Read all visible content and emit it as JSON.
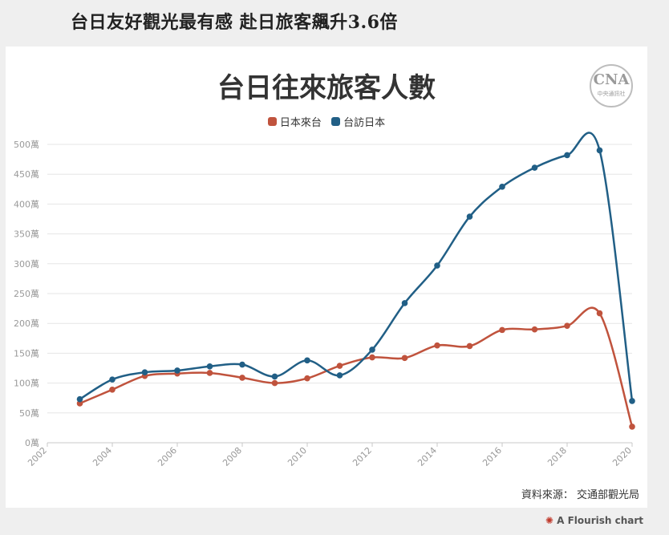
{
  "headline": "台日友好觀光最有感 赴日旅客飆升3.6倍",
  "logo": {
    "mark": "CNA",
    "text": "中央通訊社"
  },
  "source": "資料來源： 交通部觀光局",
  "credit": "A Flourish chart",
  "colors": {
    "series1": "#c0533d",
    "series2": "#215f86",
    "grid": "#e6e6e6",
    "axis": "#999999"
  },
  "chart_data": {
    "type": "line",
    "title": "台日往來旅客人數",
    "xlim": [
      2002,
      2020
    ],
    "ylim": [
      0,
      500
    ],
    "x_ticks": [
      2002,
      2004,
      2006,
      2008,
      2010,
      2012,
      2014,
      2016,
      2018,
      2020
    ],
    "y_ticks": [
      0,
      50,
      100,
      150,
      200,
      250,
      300,
      350,
      400,
      450,
      500
    ],
    "y_tick_labels": [
      "0萬",
      "50萬",
      "100萬",
      "150萬",
      "200萬",
      "250萬",
      "300萬",
      "350萬",
      "400萬",
      "450萬",
      "500萬"
    ],
    "legend_position": "top-center",
    "grid": true,
    "x": [
      2003,
      2004,
      2005,
      2006,
      2007,
      2008,
      2009,
      2010,
      2011,
      2012,
      2013,
      2014,
      2015,
      2016,
      2017,
      2018,
      2019,
      2020
    ],
    "series": [
      {
        "name": "日本來台",
        "values": [
          66,
          89,
          112,
          116,
          117,
          109,
          100,
          108,
          129,
          143,
          142,
          163,
          162,
          189,
          190,
          196,
          217,
          27
        ]
      },
      {
        "name": "台訪日本",
        "values": [
          73,
          106,
          118,
          121,
          128,
          131,
          111,
          138,
          113,
          156,
          234,
          297,
          379,
          429,
          461,
          482,
          490,
          70
        ]
      }
    ]
  }
}
